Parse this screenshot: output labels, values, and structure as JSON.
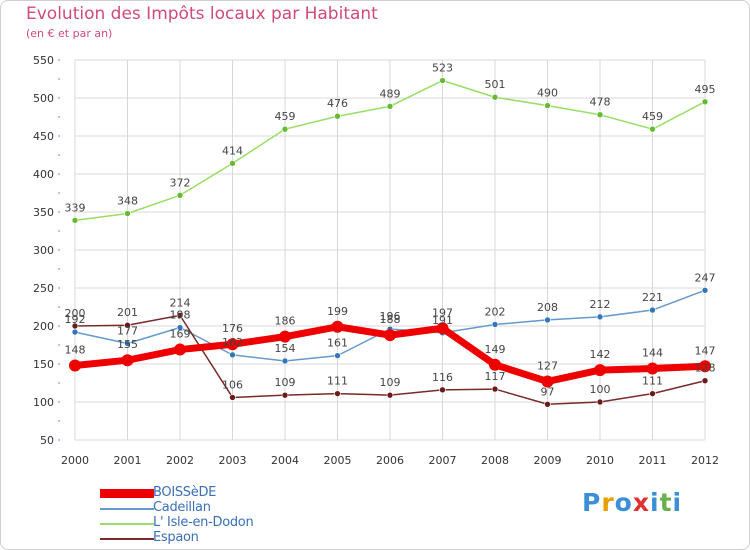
{
  "title": "Evolution des Impôts locaux par Habitant",
  "subtitle": "(en € et par an)",
  "logo_text": "Proxiti",
  "colors": {
    "title": "#d04a7a",
    "grid": "#d8d8d8",
    "axis_tick": "#e0607e",
    "logo_letters": [
      "#3a8fd6",
      "#e8a000",
      "#3a8fd6",
      "#e03030",
      "#3a8fd6",
      "#6ab04c",
      "#3a8fd6"
    ]
  },
  "chart_data": {
    "type": "line",
    "title": "Evolution des Impôts locaux par Habitant",
    "subtitle": "(en € et par an)",
    "xlabel": "",
    "ylabel": "",
    "categories": [
      "2000",
      "2001",
      "2002",
      "2003",
      "2004",
      "2005",
      "2006",
      "2007",
      "2008",
      "2009",
      "2010",
      "2011",
      "2012"
    ],
    "ylim": [
      50,
      550
    ],
    "yticks": [
      50,
      100,
      150,
      200,
      250,
      300,
      350,
      400,
      450,
      500,
      550
    ],
    "grid": true,
    "legend_position": "bottom-left",
    "series": [
      {
        "name": "L' Isle-en-Dodon",
        "color": "#99dd66",
        "marker_color": "#66bb33",
        "values": [
          339,
          348,
          372,
          414,
          459,
          476,
          489,
          523,
          501,
          490,
          478,
          459,
          495
        ],
        "labels": [
          "339",
          "348",
          "372",
          "414",
          "459",
          "476",
          "489",
          "523",
          "501",
          "490",
          "478",
          "459",
          "495"
        ],
        "label_pos": "above"
      },
      {
        "name": "Cadeillan",
        "color": "#6699cc",
        "marker_color": "#3377bb",
        "values": [
          192,
          177,
          198,
          162,
          154,
          161,
          196,
          191,
          202,
          208,
          212,
          221,
          247
        ],
        "labels": [
          "192",
          "177",
          "198",
          "162",
          "154",
          "161",
          "196",
          "191",
          "202",
          "208",
          "212",
          "221",
          "247"
        ],
        "label_pos": "above"
      },
      {
        "name": "Espaon",
        "color": "#7a2a2a",
        "marker_color": "#6a1a1a",
        "values": [
          200,
          201,
          214,
          106,
          109,
          111,
          109,
          116,
          117,
          97,
          100,
          111,
          128
        ],
        "labels": [
          "200",
          "201",
          "214",
          "106",
          "109",
          "111",
          "109",
          "116",
          "117",
          "97",
          "100",
          "111",
          "128"
        ],
        "label_pos": "above"
      },
      {
        "name": "BOISSèDE",
        "color": "#ee0000",
        "marker_color": "#ee0000",
        "thick": true,
        "values": [
          148,
          155,
          169,
          176,
          186,
          199,
          188,
          197,
          149,
          127,
          142,
          144,
          147
        ],
        "labels": [
          "148",
          "155",
          "169",
          "176",
          "186",
          "199",
          "188",
          "197",
          "149",
          "127",
          "142",
          "144",
          "147"
        ],
        "label_pos": "above"
      }
    ],
    "legend": [
      "BOISSèDE",
      "Cadeillan",
      "L' Isle-en-Dodon",
      "Espaon"
    ]
  }
}
